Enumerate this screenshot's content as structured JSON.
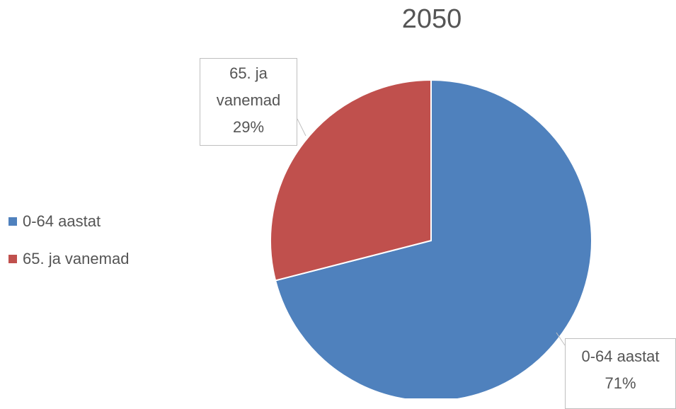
{
  "chart_data": {
    "type": "pie",
    "title": "2050",
    "categories": [
      "0-64 aastat",
      "65. ja vanemad"
    ],
    "values": [
      71,
      29
    ],
    "value_labels": [
      "71%",
      "29%"
    ],
    "colors": [
      "#4f81bd",
      "#c0504d"
    ],
    "legend": "left"
  }
}
